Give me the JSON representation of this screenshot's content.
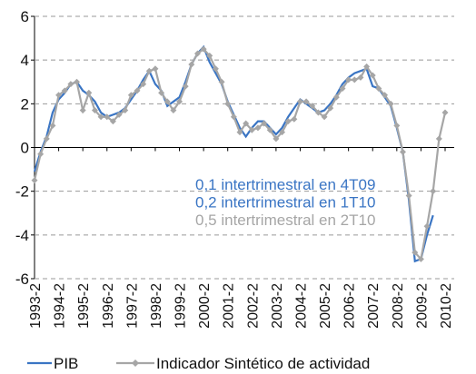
{
  "chart_data": {
    "type": "line",
    "categories": [
      "1993-2",
      null,
      null,
      null,
      "1994-2",
      null,
      null,
      null,
      "1995-2",
      null,
      null,
      null,
      "1996-2",
      null,
      null,
      null,
      "1997-2",
      null,
      null,
      null,
      "1998-2",
      null,
      null,
      null,
      "1999-2",
      null,
      null,
      null,
      "2000-2",
      null,
      null,
      null,
      "2001-2",
      null,
      null,
      null,
      "2002-2",
      null,
      null,
      null,
      "2003-2",
      null,
      null,
      null,
      "2004-2",
      null,
      null,
      null,
      "2005-2",
      null,
      null,
      null,
      "2006-2",
      null,
      null,
      null,
      "2007-2",
      null,
      null,
      null,
      "2008-2",
      null,
      null,
      null,
      "2009-2",
      null,
      null,
      null,
      "2010-2"
    ],
    "series": [
      {
        "name": "PIB",
        "color": "#3a75c4",
        "values": [
          -1.1,
          -0.2,
          0.5,
          1.6,
          2.2,
          2.5,
          2.9,
          3.0,
          2.6,
          2.4,
          2.1,
          1.6,
          1.4,
          1.5,
          1.6,
          1.8,
          2.2,
          2.6,
          3.1,
          3.5,
          2.9,
          2.6,
          1.9,
          2.1,
          2.3,
          3.0,
          3.8,
          4.3,
          4.6,
          3.9,
          3.4,
          2.9,
          2.1,
          1.5,
          0.9,
          0.5,
          0.9,
          1.2,
          1.2,
          0.9,
          0.6,
          0.9,
          1.4,
          1.8,
          2.2,
          2.0,
          1.8,
          1.6,
          1.7,
          2.0,
          2.4,
          2.9,
          3.2,
          3.4,
          3.5,
          3.6,
          2.8,
          2.7,
          2.3,
          1.9,
          0.9,
          -0.2,
          -2.4,
          -5.2,
          -5.1,
          -4.0,
          -3.1,
          null,
          null
        ]
      },
      {
        "name": "Indicador Sintético de actividad",
        "color": "#a6a6a6",
        "values": [
          -1.5,
          -0.3,
          0.4,
          1.0,
          2.4,
          2.6,
          2.9,
          3.0,
          1.7,
          2.5,
          1.7,
          1.4,
          1.4,
          1.2,
          1.5,
          1.7,
          2.4,
          2.6,
          2.9,
          3.5,
          3.6,
          2.5,
          2.1,
          1.7,
          2.1,
          2.8,
          3.8,
          4.3,
          4.5,
          4.2,
          3.6,
          3.0,
          2.0,
          1.4,
          0.7,
          1.1,
          0.8,
          0.9,
          1.1,
          0.8,
          0.4,
          0.7,
          1.2,
          1.3,
          2.1,
          2.1,
          1.9,
          1.6,
          1.4,
          1.8,
          2.3,
          2.7,
          3.1,
          3.1,
          3.2,
          3.7,
          3.3,
          2.7,
          2.4,
          2.0,
          1.0,
          -0.2,
          -2.2,
          -4.8,
          -5.1,
          -3.6,
          -2.0,
          0.4,
          1.6
        ]
      }
    ],
    "annotations": [
      {
        "text": "0,1 intertrimestral en 4T09",
        "color": "#3a75c4"
      },
      {
        "text": "0,2 intertrimestral en 1T10",
        "color": "#3a75c4"
      },
      {
        "text": "0,5 intertrimestral en 2T10",
        "color": "#a6a6a6"
      }
    ],
    "ylim": [
      -6,
      6
    ],
    "yticks": [
      -6,
      -4,
      -2,
      0,
      2,
      4,
      6
    ],
    "grid": true
  }
}
